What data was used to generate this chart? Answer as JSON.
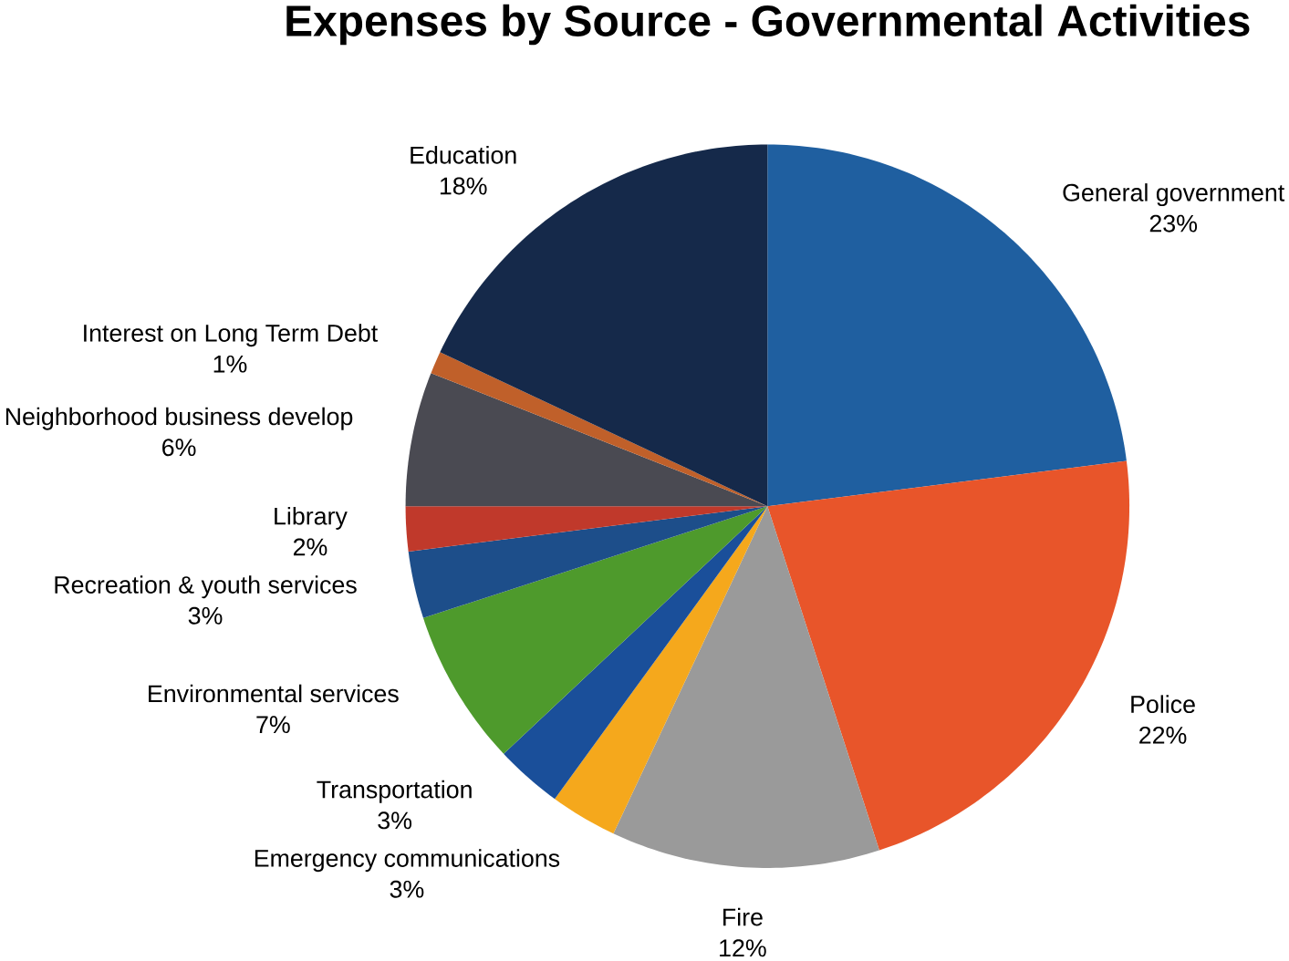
{
  "chart_data": {
    "type": "pie",
    "title": "Expenses by Source - Governmental Activities",
    "categories": [
      "General government",
      "Police",
      "Fire",
      "Emergency communications",
      "Transportation",
      "Environmental services",
      "Recreation & youth services",
      "Library",
      "Neighborhood business develop",
      "Interest on Long Term Debt",
      "Education"
    ],
    "values": [
      23,
      22,
      12,
      3,
      3,
      7,
      3,
      2,
      6,
      1,
      18
    ],
    "value_labels": [
      "23%",
      "22%",
      "12%",
      "3%",
      "3%",
      "7%",
      "3%",
      "2%",
      "6%",
      "1%",
      "18%"
    ],
    "colors": [
      "#1f5fa0",
      "#e8552a",
      "#9a9a9a",
      "#f5a81c",
      "#1a4f9a",
      "#4e9a2c",
      "#1d4e8a",
      "#c0392b",
      "#4a4a52",
      "#c0602a",
      "#15294a"
    ]
  }
}
